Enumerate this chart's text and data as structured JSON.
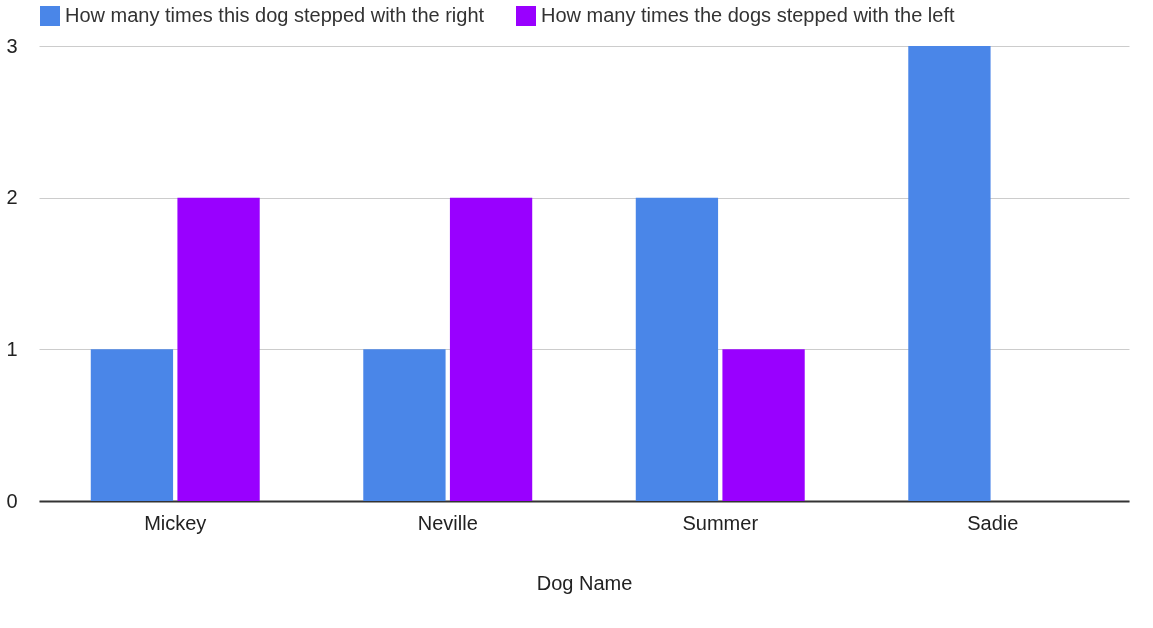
{
  "chart_data": {
    "type": "bar",
    "xlabel": "Dog Name",
    "categories": [
      "Mickey",
      "Neville",
      "Summer",
      "Sadie"
    ],
    "series": [
      {
        "name": "How many times this dog stepped with the right",
        "color": "#4a86e8",
        "values": [
          1,
          1,
          2,
          3
        ]
      },
      {
        "name": "How many times the dogs stepped with the left",
        "color": "#9900ff",
        "values": [
          2,
          2,
          1,
          0
        ]
      }
    ],
    "ylim": [
      0,
      3
    ],
    "yticks": [
      0,
      1,
      2,
      3
    ],
    "grid": "y",
    "legend": "top"
  }
}
